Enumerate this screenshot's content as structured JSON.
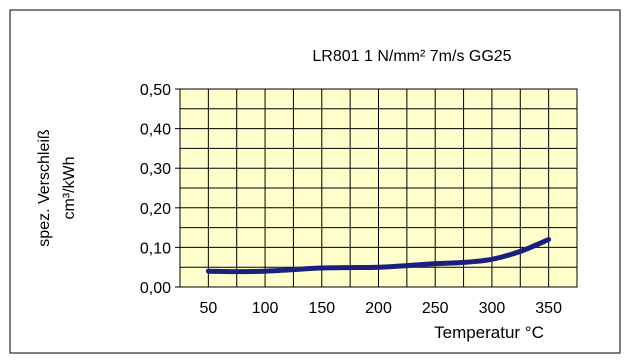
{
  "chart_data": {
    "type": "line",
    "title": "LR801    1 N/mm²    7m/s    GG25",
    "xlabel": "Temperatur °C",
    "ylabel_line1": "spez. Verschleiß",
    "ylabel_line2": "cm³/kWh",
    "xlim": [
      25,
      375
    ],
    "ylim": [
      0,
      0.5
    ],
    "x_ticks": [
      50,
      100,
      150,
      200,
      250,
      300,
      350
    ],
    "x_tick_labels": [
      "50",
      "100",
      "150",
      "200",
      "250",
      "300",
      "350"
    ],
    "y_ticks": [
      0,
      0.1,
      0.2,
      0.3,
      0.4,
      0.5
    ],
    "y_tick_labels": [
      "0,00",
      "0,10",
      "0,20",
      "0,30",
      "0,40",
      "0,50"
    ],
    "grid": true,
    "series": [
      {
        "x": [
          50,
          75,
          100,
          125,
          150,
          175,
          200,
          225,
          250,
          275,
          300,
          325,
          350
        ],
        "y": [
          0.04,
          0.039,
          0.04,
          0.044,
          0.048,
          0.049,
          0.05,
          0.054,
          0.059,
          0.062,
          0.07,
          0.09,
          0.12
        ],
        "color": "#1a2080"
      }
    ],
    "plot_background": "#ffffcc",
    "grid_color": "#000000"
  }
}
